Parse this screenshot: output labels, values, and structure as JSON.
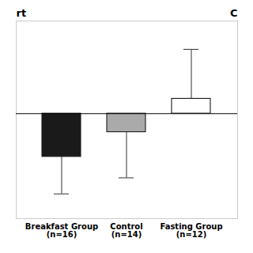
{
  "chart_data": {
    "type": "bar",
    "categories": [
      "Breakfast Group\n(n=16)",
      "Control\n(n=14)",
      "Fasting Group\n(n=12)"
    ],
    "values": [
      -0.35,
      -0.15,
      0.12
    ],
    "colors": [
      "#1a1a1a",
      "#aaaaaa",
      "#ffffff"
    ],
    "error_lower": [
      -0.65,
      -0.52,
      0.0
    ],
    "error_upper": [
      0.0,
      0.0,
      0.52
    ],
    "ylim": [
      -0.85,
      0.75
    ],
    "tick_labels": "x",
    "grid": false,
    "annotations": [
      "rt",
      "C"
    ]
  }
}
